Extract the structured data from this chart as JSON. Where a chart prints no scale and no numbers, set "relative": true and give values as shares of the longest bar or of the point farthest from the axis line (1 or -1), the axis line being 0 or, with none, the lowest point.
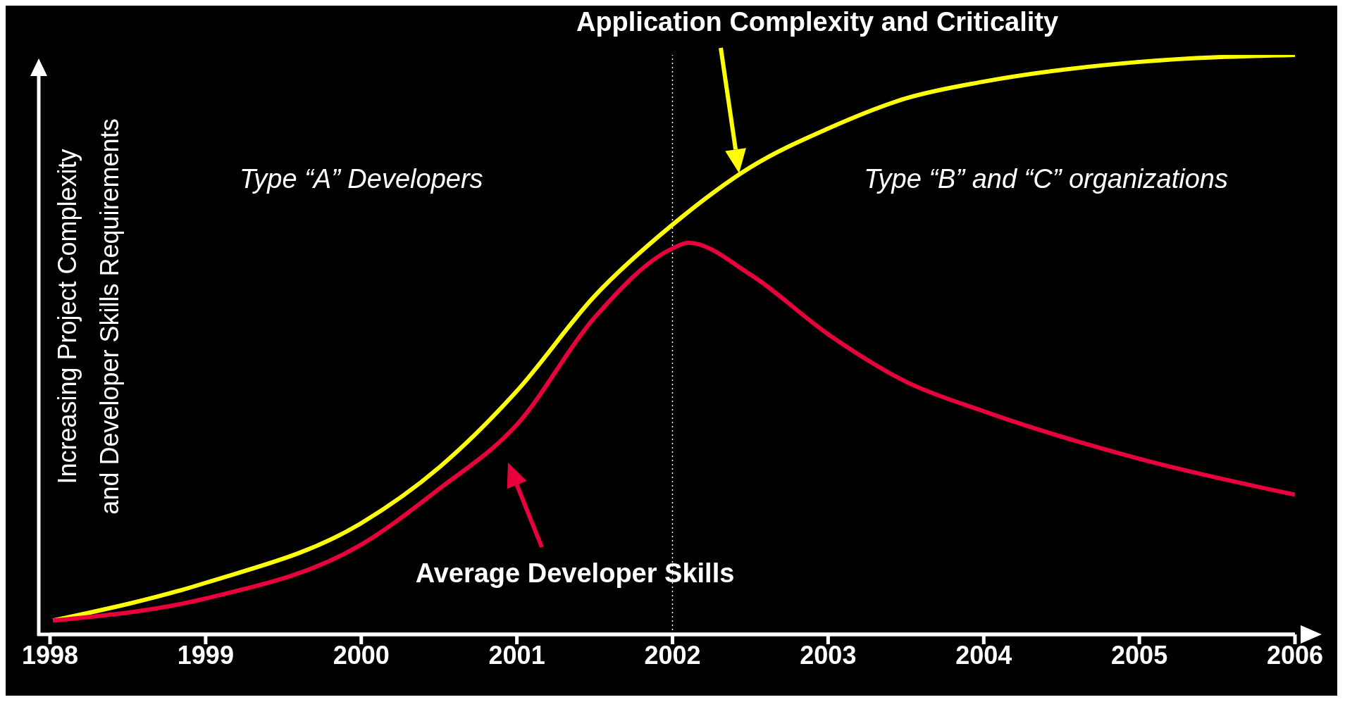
{
  "chart_data": {
    "type": "line",
    "relative": true,
    "xlim": [
      1998,
      2006
    ],
    "xticks": [
      1998,
      1999,
      2000,
      2001,
      2002,
      2003,
      2004,
      2005,
      2006
    ],
    "ylabel": "Increasing Project Complexity\nand Developer Skills Requirements",
    "annotations": [
      "Type “A” Developers",
      "Type “B” and “C” organizations"
    ],
    "ref_lines": [
      {
        "axis": "x",
        "value": 2002,
        "color": "#ffffff",
        "line_style": "dotted"
      }
    ],
    "marker": "none",
    "line_style": "solid",
    "series": [
      {
        "name": "Application Complexity and Criticality",
        "color": "#ffff00",
        "x": [
          1998.02,
          1999,
          2000,
          2000.5,
          2001,
          2001.5,
          2002,
          2002.5,
          2003,
          2003.5,
          2004,
          2005,
          2006
        ],
        "values": [
          0.024,
          0.089,
          0.192,
          0.288,
          0.42,
          0.584,
          0.707,
          0.806,
          0.873,
          0.925,
          0.954,
          0.988,
          1
        ]
      },
      {
        "name": "Average Developer Skills",
        "color": "#e8003c",
        "x": [
          1998.02,
          1999,
          2000,
          2000.5,
          2001,
          2001.5,
          2002,
          2002.1,
          2002.5,
          2003,
          2003.5,
          2004,
          2005,
          2006
        ],
        "values": [
          0.024,
          0.062,
          0.155,
          0.251,
          0.362,
          0.547,
          0.666,
          0.676,
          0.621,
          0.518,
          0.436,
          0.385,
          0.303,
          0.241
        ]
      }
    ]
  }
}
